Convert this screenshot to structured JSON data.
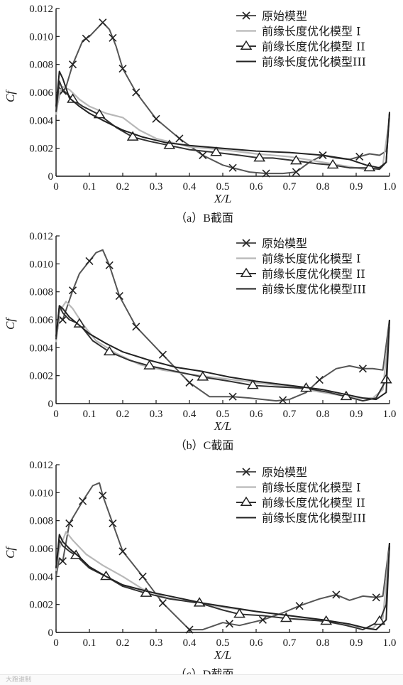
{
  "watermark": "大跑谁制",
  "colors": {
    "axis": "#1a1a1a",
    "original": "#555555",
    "opt1": "#b8b8b8",
    "opt2": "#333333",
    "opt3": "#222222"
  },
  "chart_data": [
    {
      "type": "line",
      "caption": "（a）B截面",
      "xlabel": "X/L",
      "ylabel": "Cf",
      "xlim": [
        0,
        1.0
      ],
      "ylim": [
        0,
        0.012
      ],
      "xticks": [
        "0",
        "0.1",
        "0.2",
        "0.3",
        "0.4",
        "0.5",
        "0.6",
        "0.7",
        "0.8",
        "0.9",
        "1.0"
      ],
      "yticks": [
        "0",
        "0.002",
        "0.004",
        "0.006",
        "0.008",
        "0.010",
        "0.012"
      ],
      "legend_position": "top-right",
      "series": [
        {
          "name": "原始模型",
          "marker": "x",
          "x": [
            0,
            0.01,
            0.03,
            0.05,
            0.08,
            0.1,
            0.12,
            0.14,
            0.16,
            0.18,
            0.2,
            0.24,
            0.3,
            0.37,
            0.44,
            0.5,
            0.53,
            0.58,
            0.63,
            0.68,
            0.72,
            0.76,
            0.8,
            0.84,
            0.88,
            0.91,
            0.94,
            0.97,
            0.99,
            1.0
          ],
          "y": [
            0.0046,
            0.0058,
            0.0064,
            0.008,
            0.0097,
            0.01,
            0.0105,
            0.011,
            0.0105,
            0.0093,
            0.0077,
            0.006,
            0.0041,
            0.0027,
            0.0015,
            0.0008,
            0.0006,
            0.0003,
            0.0002,
            0.0002,
            0.0003,
            0.001,
            0.0015,
            0.0013,
            0.0012,
            0.0014,
            0.0016,
            0.0015,
            0.0018,
            0.0045
          ],
          "markers_x": [
            0.02,
            0.05,
            0.09,
            0.14,
            0.17,
            0.2,
            0.24,
            0.3,
            0.37,
            0.44,
            0.53,
            0.63,
            0.72,
            0.8,
            0.91
          ]
        },
        {
          "name": "前缘长度优化模型 I",
          "marker": "none",
          "x": [
            0,
            0.01,
            0.02,
            0.04,
            0.07,
            0.1,
            0.15,
            0.2,
            0.25,
            0.3,
            0.4,
            0.5,
            0.6,
            0.7,
            0.8,
            0.9,
            0.95,
            0.98,
            1.0
          ],
          "y": [
            0.0044,
            0.006,
            0.0064,
            0.0062,
            0.0055,
            0.005,
            0.0045,
            0.0042,
            0.0033,
            0.0027,
            0.0021,
            0.0019,
            0.0016,
            0.0014,
            0.001,
            0.0006,
            0.0004,
            0.0008,
            0.0042
          ]
        },
        {
          "name": "前缘长度优化模型 II",
          "marker": "triangle",
          "x": [
            0,
            0.01,
            0.02,
            0.05,
            0.08,
            0.13,
            0.18,
            0.23,
            0.28,
            0.34,
            0.4,
            0.48,
            0.55,
            0.61,
            0.65,
            0.72,
            0.78,
            0.83,
            0.88,
            0.94,
            0.97,
            0.99,
            1.0
          ],
          "y": [
            0.0046,
            0.0068,
            0.0062,
            0.0055,
            0.005,
            0.0044,
            0.0035,
            0.0028,
            0.0025,
            0.0022,
            0.0019,
            0.0017,
            0.0015,
            0.0013,
            0.0013,
            0.0011,
            0.0009,
            0.0008,
            0.0006,
            0.0006,
            0.0005,
            0.001,
            0.0045
          ],
          "markers_x": [
            0.05,
            0.13,
            0.23,
            0.34,
            0.48,
            0.61,
            0.72,
            0.83,
            0.94
          ]
        },
        {
          "name": "前缘长度优化模型III",
          "marker": "none",
          "x": [
            0,
            0.01,
            0.02,
            0.04,
            0.07,
            0.1,
            0.14,
            0.2,
            0.26,
            0.33,
            0.4,
            0.5,
            0.6,
            0.7,
            0.8,
            0.88,
            0.93,
            0.97,
            0.99,
            1.0
          ],
          "y": [
            0.005,
            0.0075,
            0.007,
            0.0056,
            0.005,
            0.0045,
            0.004,
            0.0033,
            0.0028,
            0.0024,
            0.0022,
            0.002,
            0.0018,
            0.0017,
            0.0015,
            0.0012,
            0.0008,
            0.0006,
            0.001,
            0.0046
          ]
        }
      ]
    },
    {
      "type": "line",
      "caption": "（b）C截面",
      "xlabel": "X/L",
      "ylabel": "Cf",
      "xlim": [
        0,
        1.0
      ],
      "ylim": [
        0,
        0.012
      ],
      "xticks": [
        "0",
        "0.1",
        "0.2",
        "0.3",
        "0.4",
        "0.5",
        "0.6",
        "0.7",
        "0.8",
        "0.9",
        "1.0"
      ],
      "yticks": [
        "0",
        "0.002",
        "0.004",
        "0.006",
        "0.008",
        "0.010",
        "0.012"
      ],
      "legend_position": "top-right",
      "series": [
        {
          "name": "原始模型",
          "marker": "x",
          "x": [
            0,
            0.01,
            0.02,
            0.05,
            0.07,
            0.1,
            0.12,
            0.14,
            0.16,
            0.19,
            0.24,
            0.32,
            0.4,
            0.46,
            0.53,
            0.58,
            0.62,
            0.66,
            0.7,
            0.75,
            0.79,
            0.84,
            0.88,
            0.92,
            0.95,
            0.98,
            1.0
          ],
          "y": [
            0.0046,
            0.0062,
            0.006,
            0.0081,
            0.0093,
            0.0102,
            0.0108,
            0.011,
            0.0099,
            0.0077,
            0.0055,
            0.0035,
            0.0015,
            0.0005,
            0.0005,
            0.0004,
            0.0003,
            0.0002,
            0.0003,
            0.0008,
            0.0017,
            0.0025,
            0.0027,
            0.0025,
            0.0025,
            0.0024,
            0.006
          ],
          "markers_x": [
            0.02,
            0.05,
            0.1,
            0.16,
            0.19,
            0.24,
            0.32,
            0.4,
            0.53,
            0.68,
            0.79,
            0.92
          ]
        },
        {
          "name": "前缘长度优化模型 I",
          "marker": "none",
          "x": [
            0,
            0.01,
            0.03,
            0.05,
            0.08,
            0.12,
            0.18,
            0.25,
            0.32,
            0.4,
            0.5,
            0.6,
            0.7,
            0.8,
            0.9,
            0.95,
            0.98,
            1.0
          ],
          "y": [
            0.0044,
            0.0066,
            0.0073,
            0.0068,
            0.0057,
            0.0045,
            0.0036,
            0.0028,
            0.0024,
            0.0021,
            0.0018,
            0.0015,
            0.0012,
            0.0008,
            0.0004,
            0.0004,
            0.001,
            0.0055
          ]
        },
        {
          "name": "前缘长度优化模型 II",
          "marker": "triangle",
          "x": [
            0,
            0.01,
            0.02,
            0.04,
            0.07,
            0.11,
            0.16,
            0.22,
            0.28,
            0.36,
            0.44,
            0.52,
            0.59,
            0.66,
            0.75,
            0.82,
            0.87,
            0.92,
            0.96,
            0.99,
            1.0
          ],
          "y": [
            0.0046,
            0.007,
            0.0065,
            0.006,
            0.0057,
            0.0045,
            0.0037,
            0.0031,
            0.0027,
            0.0023,
            0.0019,
            0.0016,
            0.0013,
            0.0012,
            0.0011,
            0.0008,
            0.0005,
            0.0002,
            0.0004,
            0.0017,
            0.006
          ],
          "markers_x": [
            0.07,
            0.16,
            0.28,
            0.44,
            0.59,
            0.75,
            0.87,
            0.99
          ]
        },
        {
          "name": "前缘长度优化模型III",
          "marker": "none",
          "x": [
            0,
            0.01,
            0.02,
            0.04,
            0.07,
            0.1,
            0.15,
            0.2,
            0.28,
            0.36,
            0.44,
            0.52,
            0.6,
            0.7,
            0.8,
            0.88,
            0.92,
            0.96,
            0.99,
            1.0
          ],
          "y": [
            0.0048,
            0.007,
            0.0068,
            0.0062,
            0.0056,
            0.005,
            0.0043,
            0.0037,
            0.0031,
            0.0026,
            0.0023,
            0.0019,
            0.0016,
            0.0013,
            0.001,
            0.0006,
            0.0004,
            0.0003,
            0.0008,
            0.006
          ]
        }
      ]
    },
    {
      "type": "line",
      "caption": "（c）D截面",
      "xlabel": "X/L",
      "ylabel": "Cf",
      "xlim": [
        0,
        1.0
      ],
      "ylim": [
        0,
        0.012
      ],
      "xticks": [
        "0",
        "0.1",
        "0.2",
        "0.3",
        "0.4",
        "0.5",
        "0.6",
        "0.7",
        "0.8",
        "0.9",
        "1.0"
      ],
      "yticks": [
        "0",
        "0.002",
        "0.004",
        "0.006",
        "0.008",
        "0.010",
        "0.012"
      ],
      "legend_position": "top-right",
      "series": [
        {
          "name": "原始模型",
          "marker": "x",
          "x": [
            0,
            0.01,
            0.02,
            0.04,
            0.08,
            0.11,
            0.13,
            0.14,
            0.17,
            0.2,
            0.26,
            0.32,
            0.4,
            0.44,
            0.5,
            0.55,
            0.62,
            0.68,
            0.73,
            0.79,
            0.84,
            0.88,
            0.92,
            0.96,
            0.98,
            1.0
          ],
          "y": [
            0.004,
            0.0053,
            0.0051,
            0.0078,
            0.0094,
            0.0105,
            0.0107,
            0.0098,
            0.0078,
            0.0058,
            0.004,
            0.0021,
            0.0002,
            0.0002,
            0.0007,
            0.0005,
            0.0009,
            0.0014,
            0.0019,
            0.0024,
            0.0027,
            0.0023,
            0.0026,
            0.0025,
            0.0026,
            0.0064
          ],
          "markers_x": [
            0.02,
            0.04,
            0.08,
            0.14,
            0.17,
            0.2,
            0.26,
            0.32,
            0.4,
            0.52,
            0.62,
            0.73,
            0.84,
            0.96
          ]
        },
        {
          "name": "前缘长度优化模型 I",
          "marker": "none",
          "x": [
            0,
            0.01,
            0.03,
            0.05,
            0.09,
            0.14,
            0.2,
            0.26,
            0.33,
            0.4,
            0.5,
            0.6,
            0.7,
            0.8,
            0.9,
            0.95,
            0.98,
            1.0
          ],
          "y": [
            0.0044,
            0.006,
            0.0072,
            0.0066,
            0.0056,
            0.0048,
            0.004,
            0.0031,
            0.0025,
            0.0022,
            0.0018,
            0.0015,
            0.0012,
            0.0008,
            0.0004,
            0.0003,
            0.001,
            0.0062
          ]
        },
        {
          "name": "前缘长度优化模型 II",
          "marker": "triangle",
          "x": [
            0,
            0.01,
            0.02,
            0.04,
            0.06,
            0.1,
            0.15,
            0.2,
            0.27,
            0.34,
            0.43,
            0.5,
            0.55,
            0.62,
            0.69,
            0.75,
            0.81,
            0.87,
            0.92,
            0.97,
            0.99,
            1.0
          ],
          "y": [
            0.0046,
            0.0066,
            0.0062,
            0.0058,
            0.0055,
            0.0046,
            0.004,
            0.0033,
            0.0028,
            0.0024,
            0.0021,
            0.0016,
            0.0013,
            0.0012,
            0.001,
            0.0009,
            0.0008,
            0.0005,
            0.0002,
            0.0008,
            0.002,
            0.0062
          ],
          "markers_x": [
            0.06,
            0.15,
            0.27,
            0.43,
            0.55,
            0.69,
            0.81,
            0.97
          ]
        },
        {
          "name": "前缘长度优化模型III",
          "marker": "none",
          "x": [
            0,
            0.01,
            0.02,
            0.04,
            0.07,
            0.1,
            0.15,
            0.2,
            0.28,
            0.36,
            0.44,
            0.52,
            0.6,
            0.7,
            0.8,
            0.88,
            0.93,
            0.96,
            0.99,
            1.0
          ],
          "y": [
            0.0046,
            0.007,
            0.0065,
            0.006,
            0.0054,
            0.0047,
            0.004,
            0.0034,
            0.0029,
            0.0025,
            0.0021,
            0.0018,
            0.0015,
            0.0012,
            0.0009,
            0.0006,
            0.0003,
            0.0002,
            0.0009,
            0.0064
          ]
        }
      ]
    }
  ]
}
